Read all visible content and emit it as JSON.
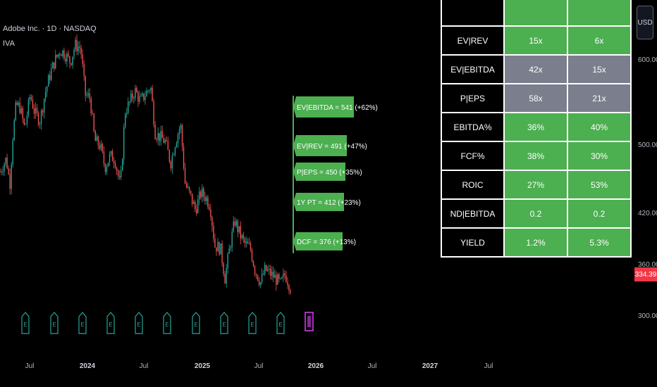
{
  "header": {
    "title": "Adobe Inc. · 1D · NASDAQ",
    "indicator": "IVA"
  },
  "currency_button": "USD",
  "price_axis": {
    "ticks": [
      "600.00",
      "500.00",
      "420.00",
      "360.00",
      "300.00"
    ],
    "last_price": "334.39",
    "last_price_color": "#f23645"
  },
  "time_axis": [
    {
      "label": "Jul",
      "bold": false
    },
    {
      "label": "2024",
      "bold": true
    },
    {
      "label": "Jul",
      "bold": false
    },
    {
      "label": "2025",
      "bold": true
    },
    {
      "label": "Jul",
      "bold": false
    },
    {
      "label": "2026",
      "bold": true
    },
    {
      "label": "Jul",
      "bold": false
    },
    {
      "label": "2027",
      "bold": true
    },
    {
      "label": "Jul",
      "bold": false
    }
  ],
  "valuation_labels": [
    "EV|EBITDA = 541 (+62%)",
    "EV|REV = 491 (+47%)",
    "P|EPS = 450 (+35%)",
    "1Y PT = 412 (+23%)",
    "DCF = 376 (+13%)"
  ],
  "table": {
    "rows": [
      {
        "metric": "",
        "v1": "",
        "v2": "",
        "c1": "green",
        "c2": "green"
      },
      {
        "metric": "EV|REV",
        "v1": "15x",
        "v2": "6x",
        "c1": "green",
        "c2": "green"
      },
      {
        "metric": "EV|EBITDA",
        "v1": "42x",
        "v2": "15x",
        "c1": "gray",
        "c2": "gray"
      },
      {
        "metric": "P|EPS",
        "v1": "58x",
        "v2": "21x",
        "c1": "gray",
        "c2": "gray"
      },
      {
        "metric": "EBITDA%",
        "v1": "36%",
        "v2": "40%",
        "c1": "green",
        "c2": "green"
      },
      {
        "metric": "FCF%",
        "v1": "38%",
        "v2": "30%",
        "c1": "green",
        "c2": "green"
      },
      {
        "metric": "ROIC",
        "v1": "27%",
        "v2": "53%",
        "c1": "green",
        "c2": "green"
      },
      {
        "metric": "ND|EBITDA",
        "v1": "0.2",
        "v2": "0.2",
        "c1": "green",
        "c2": "green"
      },
      {
        "metric": "YIELD",
        "v1": "1.2%",
        "v2": "5.3%",
        "c1": "green",
        "c2": "green"
      }
    ]
  },
  "colors": {
    "up": "#26a69a",
    "down": "#ef5350",
    "label_green": "#4caf50",
    "event": "#26a69a",
    "event_future": "#e040fb"
  },
  "chart_data": {
    "type": "candlestick",
    "series": [
      {
        "name": "Adobe Inc. · 1D · NASDAQ",
        "points": [
          [
            "2023-06-01",
            470
          ],
          [
            "2023-06-20",
            485
          ],
          [
            "2023-07-01",
            455
          ],
          [
            "2023-07-10",
            512
          ],
          [
            "2023-07-20",
            548
          ],
          [
            "2023-08-01",
            545
          ],
          [
            "2023-08-15",
            520
          ],
          [
            "2023-09-01",
            560
          ],
          [
            "2023-09-15",
            538
          ],
          [
            "2023-10-01",
            530
          ],
          [
            "2023-10-15",
            560
          ],
          [
            "2023-11-01",
            585
          ],
          [
            "2023-11-15",
            600
          ],
          [
            "2023-12-01",
            612
          ],
          [
            "2023-12-15",
            608
          ],
          [
            "2024-01-01",
            598
          ],
          [
            "2024-01-15",
            618
          ],
          [
            "2024-02-01",
            615
          ],
          [
            "2024-02-15",
            560
          ],
          [
            "2024-03-01",
            556
          ],
          [
            "2024-03-15",
            506
          ],
          [
            "2024-04-01",
            500
          ],
          [
            "2024-04-15",
            475
          ],
          [
            "2024-05-01",
            488
          ],
          [
            "2024-05-15",
            485
          ],
          [
            "2024-06-01",
            452
          ],
          [
            "2024-06-15",
            540
          ],
          [
            "2024-07-01",
            552
          ],
          [
            "2024-07-15",
            565
          ],
          [
            "2024-08-01",
            552
          ],
          [
            "2024-08-15",
            560
          ],
          [
            "2024-09-01",
            570
          ],
          [
            "2024-09-15",
            515
          ],
          [
            "2024-10-01",
            510
          ],
          [
            "2024-10-15",
            505
          ],
          [
            "2024-11-01",
            480
          ],
          [
            "2024-11-15",
            505
          ],
          [
            "2024-12-01",
            525
          ],
          [
            "2024-12-15",
            455
          ],
          [
            "2025-01-01",
            440
          ],
          [
            "2025-01-15",
            425
          ],
          [
            "2025-02-01",
            445
          ],
          [
            "2025-02-15",
            440
          ],
          [
            "2025-03-01",
            430
          ],
          [
            "2025-03-15",
            383
          ],
          [
            "2025-04-01",
            380
          ],
          [
            "2025-04-15",
            345
          ],
          [
            "2025-05-01",
            385
          ],
          [
            "2025-05-15",
            412
          ],
          [
            "2025-06-01",
            395
          ],
          [
            "2025-06-15",
            385
          ],
          [
            "2025-07-01",
            380
          ],
          [
            "2025-07-15",
            355
          ],
          [
            "2025-08-01",
            340
          ],
          [
            "2025-08-15",
            355
          ],
          [
            "2025-09-01",
            350
          ],
          [
            "2025-09-15",
            345
          ],
          [
            "2025-10-01",
            338
          ],
          [
            "2025-10-15",
            350
          ],
          [
            "2025-10-31",
            334.39
          ]
        ]
      }
    ],
    "event_markers": [
      "E",
      "E",
      "E",
      "E",
      "E",
      "E",
      "E",
      "E",
      "E",
      "E"
    ]
  }
}
